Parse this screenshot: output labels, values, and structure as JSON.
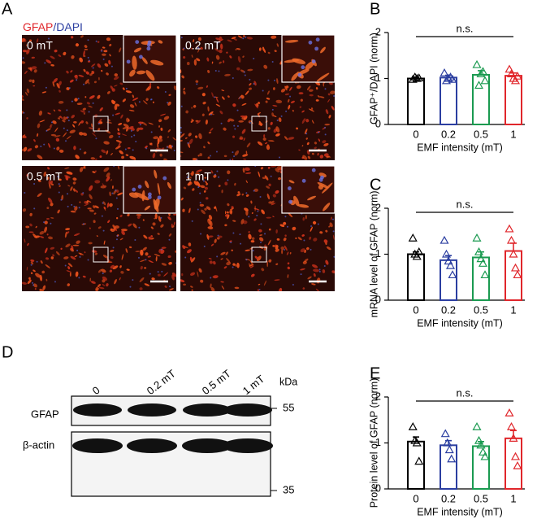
{
  "panel_a": {
    "label": "A",
    "stain": [
      "GFAP",
      "/DAPI"
    ],
    "images": [
      "0 mT",
      "0.2 mT",
      "0.5 mT",
      "1 mT"
    ]
  },
  "panel_d": {
    "label": "D",
    "lanes": [
      "0",
      "0.2 mT",
      "0.5 mT",
      "1 mT"
    ],
    "unit": "kDa",
    "rows": [
      "GFAP",
      "β-actin"
    ],
    "markers": [
      55,
      35
    ]
  },
  "chart_data": [
    {
      "type": "bar",
      "panel": "B",
      "ylabel": "GFAP⁺/DAPI (norm)",
      "xlabel": "EMF intensity (mT)",
      "annotation": "n.s.",
      "categories": [
        "0",
        "0.2",
        "0.5",
        "1"
      ],
      "colors": [
        "#000000",
        "#2b3ea0",
        "#1a9a50",
        "#e0262b"
      ],
      "values": [
        1.0,
        1.02,
        1.08,
        1.06
      ],
      "errors": [
        0.03,
        0.05,
        0.09,
        0.06
      ],
      "points": [
        [
          0.98,
          1.03,
          1.0,
          1.01
        ],
        [
          1.12,
          0.95,
          1.0,
          1.03,
          0.98
        ],
        [
          1.3,
          0.85,
          1.1,
          1.15,
          0.95
        ],
        [
          1.2,
          1.1,
          1.0,
          0.95,
          1.05
        ]
      ],
      "ylim": [
        0,
        2
      ],
      "yticks": [
        0,
        1,
        2
      ]
    },
    {
      "type": "bar",
      "panel": "C",
      "ylabel": "mRNA level of GFAP (norm)",
      "xlabel": "EMF intensity (mT)",
      "annotation": "n.s.",
      "categories": [
        "0",
        "0.2",
        "0.5",
        "1"
      ],
      "colors": [
        "#000000",
        "#2b3ea0",
        "#1a9a50",
        "#e0262b"
      ],
      "values": [
        1.0,
        0.87,
        0.93,
        1.07
      ],
      "errors": [
        0.05,
        0.1,
        0.12,
        0.17
      ],
      "points": [
        [
          1.35,
          1.0,
          0.95,
          1.05
        ],
        [
          1.3,
          1.0,
          0.85,
          0.75,
          0.55
        ],
        [
          1.35,
          1.05,
          0.9,
          0.8,
          0.55
        ],
        [
          1.55,
          1.3,
          1.0,
          0.7,
          0.55
        ]
      ],
      "ylim": [
        0,
        2
      ],
      "yticks": [
        0,
        1,
        2
      ]
    },
    {
      "type": "bar",
      "panel": "E",
      "ylabel": "Protein level of GFAP (norm)",
      "xlabel": "EMF intensity (mT)",
      "annotation": "n.s.",
      "categories": [
        "0",
        "0.2",
        "0.5",
        "1"
      ],
      "colors": [
        "#000000",
        "#2b3ea0",
        "#1a9a50",
        "#e0262b"
      ],
      "values": [
        1.03,
        0.95,
        0.93,
        1.1
      ],
      "errors": [
        0.1,
        0.1,
        0.1,
        0.17
      ],
      "points": [
        [
          1.35,
          1.05,
          1.0,
          0.6
        ],
        [
          1.2,
          1.0,
          0.85,
          0.65
        ],
        [
          1.35,
          1.05,
          0.95,
          0.8,
          0.7
        ],
        [
          1.65,
          1.35,
          1.1,
          0.7,
          0.5
        ]
      ],
      "ylim": [
        0,
        2
      ],
      "yticks": [
        0,
        1,
        2
      ]
    }
  ]
}
